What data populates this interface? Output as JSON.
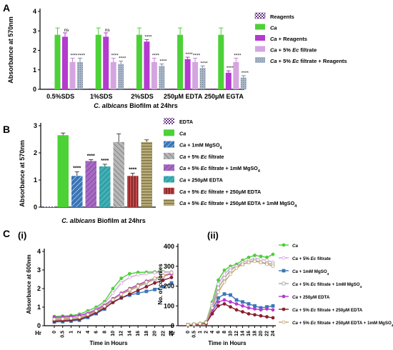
{
  "chart_data": [
    {
      "panel": "A",
      "type": "bar",
      "ylabel": "Absorbance at 570nm",
      "xlabel_italic": "C. albicans",
      "xlabel_rest": " Biofilm at 24hrs",
      "ylim": [
        0,
        4
      ],
      "yticks": [
        "0",
        "1",
        "2",
        "3",
        "4"
      ],
      "categories": [
        "0.5%SDS",
        "1%SDS",
        "2%SDS",
        "250μM EDTA",
        "250μM EGTA"
      ],
      "series": [
        {
          "name": "Reagents",
          "values": [
            0,
            0,
            0,
            0,
            0
          ],
          "err": [
            0,
            0,
            0,
            0,
            0
          ],
          "sig": [
            "",
            "",
            "",
            "",
            ""
          ]
        },
        {
          "name": "Ca",
          "values": [
            2.8,
            2.8,
            2.8,
            2.8,
            2.8
          ],
          "err": [
            0.35,
            0.35,
            0.35,
            0.35,
            0.35
          ],
          "sig": [
            "",
            "",
            "",
            "",
            ""
          ]
        },
        {
          "name": "Ca + Reagents",
          "values": [
            2.7,
            2.7,
            2.45,
            1.55,
            0.85
          ],
          "err": [
            0.2,
            0.2,
            0.1,
            0.1,
            0.1
          ],
          "sig": [
            "ns",
            "ns",
            "****",
            "****",
            "****"
          ]
        },
        {
          "name": "Ca + 5% Ec filtrate",
          "values": [
            1.4,
            1.4,
            1.4,
            1.4,
            1.4
          ],
          "err": [
            0.2,
            0.2,
            0.2,
            0.2,
            0.2
          ],
          "sig": [
            "****",
            "****",
            "****",
            "****",
            "****"
          ]
        },
        {
          "name": "Ca + 5% Ec filtrate + Reagents",
          "values": [
            1.4,
            1.3,
            1.2,
            1.1,
            0.6
          ],
          "err": [
            0.2,
            0.15,
            0.1,
            0.1,
            0.1
          ],
          "sig": [
            "****",
            "****",
            "****",
            "****",
            "****"
          ]
        }
      ],
      "legend": [
        {
          "label": "Reagents"
        },
        {
          "label": "Ca",
          "italic": true
        },
        {
          "italic": "Ca",
          "rest": " + Reagents"
        },
        {
          "italic": "Ca",
          "rest": " + 5% ",
          "italic2": "Ec",
          "rest2": " filtrate"
        },
        {
          "italic": "Ca",
          "rest": " + 5% ",
          "italic2": "Ec",
          "rest2": " filtrate + Reagents"
        }
      ]
    },
    {
      "panel": "B",
      "type": "bar",
      "ylabel": "Absorbance at 570nm",
      "xlabel_italic": "C. albicans",
      "xlabel_rest": " Biofilm at 24hrs",
      "ylim": [
        0,
        3
      ],
      "yticks": [
        "0",
        "1",
        "2",
        "3"
      ],
      "categories": [
        "EDTA",
        "Ca",
        "Ca + 1mM MgSO4",
        "Ca + 5% Ec filtrate",
        "Ca + 5% Ec filtrate + 1mM MgSO4",
        "Ca + 250μM EDTA",
        "Ca + 5% Ec filtrate + 250μM EDTA",
        "Ca + 5% Ec filtrate + 250μM EDTA + 1mM MgSO4"
      ],
      "values": [
        0.02,
        2.65,
        1.15,
        2.4,
        1.7,
        1.5,
        1.15,
        2.4
      ],
      "err": [
        0,
        0.08,
        0.15,
        0.3,
        0.05,
        0.08,
        0.1,
        0.08
      ],
      "sig": [
        "",
        "",
        "****",
        "",
        "****",
        "****",
        "****",
        ""
      ],
      "legend": [
        {
          "label": "EDTA"
        },
        {
          "label": "Ca",
          "italic": true
        },
        {
          "italic": "Ca",
          "rest": " + 1mM MgSO",
          "sub": "4"
        },
        {
          "italic": "Ca",
          "rest": " + 5% ",
          "italic2": "Ec",
          "rest2": " filtrate"
        },
        {
          "italic": "Ca",
          "rest": " + 5% ",
          "italic2": "Ec",
          "rest2": " filtrate + 1mM MgSO",
          "sub": "4"
        },
        {
          "italic": "Ca",
          "rest": " + 250μM EDTA"
        },
        {
          "italic": "Ca",
          "rest": " + 5% ",
          "italic2": "Ec",
          "rest2": " filtrate + 250μM EDTA"
        },
        {
          "italic": "Ca",
          "rest": " + 5% ",
          "italic2": "Ec",
          "rest2": " filtrate + 250μM EDTA + 1mM MgSO",
          "sub": "4"
        }
      ]
    },
    {
      "panel": "C (i)",
      "type": "line",
      "ylabel": "Absorbance at 600nm",
      "xlabel": "Time in Hours",
      "x_prefix": "Hr",
      "ylim": [
        0,
        4
      ],
      "yticks": [
        "0",
        "1",
        "2",
        "3",
        "4"
      ],
      "x": [
        "0",
        "0.5",
        "1",
        "2",
        "4",
        "6",
        "8",
        "10",
        "12",
        "14",
        "16",
        "18",
        "20",
        "22",
        "24"
      ],
      "series": [
        {
          "values": [
            0.5,
            0.52,
            0.55,
            0.62,
            0.8,
            1.0,
            1.3,
            2.0,
            2.55,
            2.8,
            2.87,
            2.88,
            2.9,
            2.9,
            2.9
          ]
        },
        {
          "values": [
            0.4,
            0.42,
            0.45,
            0.55,
            0.7,
            0.9,
            1.2,
            1.75,
            2.3,
            2.6,
            2.75,
            2.8,
            2.85,
            2.87,
            2.9
          ]
        },
        {
          "values": [
            0.2,
            0.22,
            0.25,
            0.3,
            0.45,
            0.65,
            0.9,
            1.3,
            1.5,
            1.65,
            1.75,
            1.85,
            1.95,
            2.1,
            2.3
          ]
        },
        {
          "values": [
            0.3,
            0.32,
            0.35,
            0.4,
            0.55,
            0.75,
            1.0,
            1.4,
            1.7,
            1.9,
            2.1,
            2.3,
            2.5,
            2.65,
            2.8
          ]
        },
        {
          "values": [
            0.45,
            0.47,
            0.5,
            0.55,
            0.65,
            0.85,
            1.1,
            1.45,
            1.75,
            2.0,
            2.2,
            2.4,
            2.55,
            2.7,
            2.8
          ]
        },
        {
          "values": [
            0.25,
            0.27,
            0.3,
            0.35,
            0.5,
            0.7,
            0.95,
            1.25,
            1.5,
            1.7,
            1.9,
            2.1,
            2.3,
            2.45,
            2.6
          ]
        },
        {
          "values": [
            0.35,
            0.37,
            0.4,
            0.45,
            0.6,
            0.8,
            1.05,
            1.4,
            1.7,
            1.95,
            2.15,
            2.35,
            2.55,
            2.7,
            2.85
          ]
        }
      ]
    },
    {
      "panel": "C (ii)",
      "type": "line",
      "ylabel": "No. of colonies",
      "xlabel": "Time in Hours",
      "x_prefix": "Hr",
      "ylim": [
        0,
        400
      ],
      "yticks": [
        "0",
        "100",
        "200",
        "300",
        "400"
      ],
      "x": [
        "0",
        "0.5",
        "1",
        "2",
        "4",
        "6",
        "8",
        "10",
        "12",
        "14",
        "16",
        "18",
        "20",
        "22",
        "24"
      ],
      "series": [
        {
          "name": "Ca",
          "values": [
            5,
            8,
            12,
            20,
            120,
            230,
            280,
            300,
            310,
            330,
            345,
            355,
            350,
            345,
            360
          ]
        },
        {
          "name": "Ca + 5% Ec filtrate",
          "values": [
            5,
            8,
            10,
            18,
            110,
            210,
            260,
            290,
            300,
            320,
            330,
            340,
            335,
            330,
            320
          ]
        },
        {
          "name": "Ca + 1mM MgSO4",
          "values": [
            5,
            6,
            8,
            15,
            80,
            140,
            160,
            155,
            130,
            120,
            110,
            100,
            90,
            95,
            100
          ]
        },
        {
          "name": "Ca + 5% Ec filtrate + 1mM MgSO4",
          "values": [
            5,
            7,
            10,
            18,
            100,
            190,
            240,
            280,
            300,
            310,
            320,
            330,
            320,
            315,
            310
          ]
        },
        {
          "name": "Ca + 250μM EDTA",
          "values": [
            5,
            6,
            8,
            14,
            70,
            120,
            130,
            120,
            110,
            100,
            90,
            85,
            80,
            85,
            80
          ]
        },
        {
          "name": "Ca + 5% Ec filtrate + 250μM EDTA",
          "values": [
            5,
            6,
            7,
            12,
            60,
            100,
            110,
            95,
            80,
            70,
            60,
            55,
            50,
            45,
            40
          ]
        },
        {
          "name": "Ca + 5% Ec filtrate + 250μM EDTA + 1mM MgSO4",
          "values": [
            5,
            7,
            10,
            16,
            90,
            170,
            220,
            260,
            290,
            310,
            320,
            325,
            320,
            310,
            300
          ]
        }
      ],
      "legend": [
        {
          "label": "Ca",
          "italic": true
        },
        {
          "italic": "Ca",
          "rest": " + 5% ",
          "italic2": "Ec",
          "rest2": " filtrate"
        },
        {
          "italic": "Ca",
          "rest": " + 1mM MgSO",
          "sub": "4"
        },
        {
          "italic": "Ca",
          "rest": " + 5% ",
          "italic2": "Ec",
          "rest2": " filtrate + 1mM MgSO",
          "sub": "4"
        },
        {
          "italic": "Ca",
          "rest": " + 250μM EDTA"
        },
        {
          "italic": "Ca",
          "rest": " + 5% ",
          "italic2": "Ec",
          "rest2": " filtrate + 250μM EDTA"
        },
        {
          "italic": "Ca",
          "rest": " + 5% ",
          "italic2": "Ec",
          "rest2": " filtrate + 250μM EDTA + 1mM MgSO",
          "sub": "4"
        }
      ]
    }
  ],
  "panel_labels": {
    "a": "A",
    "b": "B",
    "c": "C",
    "ci": "(i)",
    "cii": "(ii)"
  },
  "colors": {
    "green": "#4cd137",
    "magenta": "#b43ad0",
    "pink": "#d5a5e0",
    "grey_blue": "#a7b4c6",
    "blue": "#3a76b8",
    "dark_red": "#8b1e2c",
    "khaki": "#b9ad79",
    "purple": "#7b4ea3",
    "tan": "#c7a66c"
  }
}
